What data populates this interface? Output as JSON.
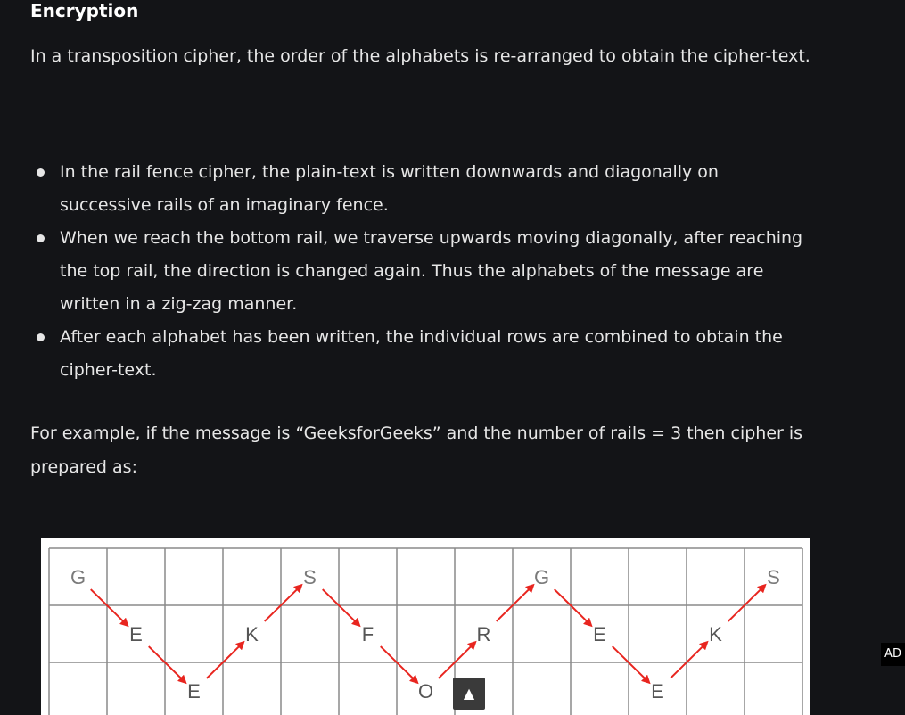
{
  "section": {
    "heading": "Encryption",
    "intro": "In a transposition cipher, the order of the alphabets is re-arranged to obtain the cipher-text."
  },
  "bullets": [
    "In the rail fence cipher, the plain-text is written downwards and diagonally on successive rails of an imaginary fence.",
    "When we reach the bottom rail, we traverse upwards moving diagonally, after reaching the top rail, the direction is changed again. Thus the alphabets of the message are written in a zig-zag manner.",
    "After each alphabet has been written, the individual rows are combined to obtain the cipher-text."
  ],
  "example": "For example, if the message is “GeeksforGeeks” and the number of rails = 3 then cipher is prepared as:",
  "rail_grid": {
    "rails": 3,
    "columns": 13,
    "letters": [
      "G",
      "E",
      "E",
      "K",
      "S",
      "F",
      "O",
      "R",
      "G",
      "E",
      "E",
      "K",
      "S"
    ],
    "arrow_color": "#e8251f",
    "grid_color": "#8a8a8a"
  },
  "ad_label": "AD",
  "scroll_top_glyph": "▲"
}
